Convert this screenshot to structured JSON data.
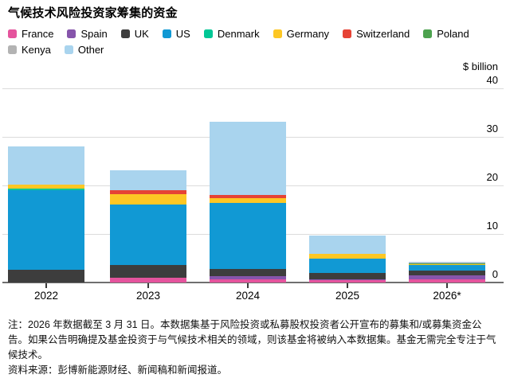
{
  "title": "气候技术风险投资家筹集的资金",
  "y_axis": {
    "unit_label": "$ billion"
  },
  "footnote": {
    "note": "注：2026 年数据截至 3 月 31 日。本数据集基于风险投资或私募股权投资者公开宣布的募集和/或募集资金公告。如果公告明确提及基金投资于与气候技术相关的领域，则该基金将被纳入本数据集。基金无需完全专注于气候技术。",
    "source": "资料来源：彭博新能源财经、新闻稿和新闻报道。"
  },
  "chart_data": {
    "type": "bar",
    "stacked": true,
    "title": "气候技术风险投资家筹集的资金",
    "ylabel": "$ billion",
    "ylim": [
      0,
      40
    ],
    "yticks": [
      0,
      10,
      20,
      30,
      40
    ],
    "grid": true,
    "legend_position": "top",
    "categories": [
      "2022",
      "2023",
      "2024",
      "2025",
      "2026*"
    ],
    "series": [
      {
        "name": "France",
        "color": "#e5549d",
        "values": [
          0,
          0.95,
          0.65,
          0.45,
          0.6
        ]
      },
      {
        "name": "Spain",
        "color": "#8655ab",
        "values": [
          0,
          0,
          0.6,
          0.25,
          0.95
        ]
      },
      {
        "name": "UK",
        "color": "#3d3d3d",
        "values": [
          2.6,
          2.6,
          1.5,
          1.2,
          0.95
        ]
      },
      {
        "name": "US",
        "color": "#1199d4",
        "values": [
          16.4,
          12.5,
          13.6,
          3.0,
          1.1
        ]
      },
      {
        "name": "Denmark",
        "color": "#00c795",
        "values": [
          0.4,
          0,
          0,
          0,
          0.1
        ]
      },
      {
        "name": "Germany",
        "color": "#fdc724",
        "values": [
          0.8,
          2.1,
          1.0,
          1.0,
          0.15
        ]
      },
      {
        "name": "Switzerland",
        "color": "#e64335",
        "values": [
          0,
          0.8,
          0.7,
          0,
          0
        ]
      },
      {
        "name": "Poland",
        "color": "#4ca24e",
        "values": [
          0,
          0,
          0,
          0,
          0.1
        ]
      },
      {
        "name": "Kenya",
        "color": "#b3b3b3",
        "values": [
          0,
          0,
          0,
          0,
          0.1
        ]
      },
      {
        "name": "Other",
        "color": "#a9d4ee",
        "values": [
          7.9,
          4.1,
          15.0,
          3.7,
          0.25
        ]
      }
    ],
    "totals": [
      28.1,
      23.05,
      33.05,
      9.6,
      4.3
    ]
  }
}
